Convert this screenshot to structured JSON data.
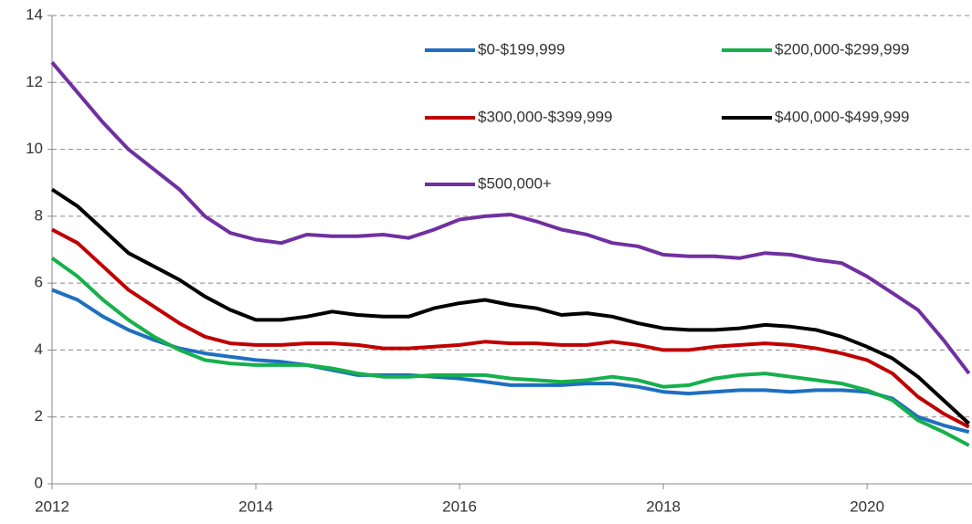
{
  "chart_data": {
    "type": "line",
    "x": [
      2012,
      2012.25,
      2012.5,
      2012.75,
      2013,
      2013.25,
      2013.5,
      2013.75,
      2014,
      2014.25,
      2014.5,
      2014.75,
      2015,
      2015.25,
      2015.5,
      2015.75,
      2016,
      2016.25,
      2016.5,
      2016.75,
      2017,
      2017.25,
      2017.5,
      2017.75,
      2018,
      2018.25,
      2018.5,
      2018.75,
      2019,
      2019.25,
      2019.5,
      2019.75,
      2020,
      2020.25,
      2020.5,
      2020.75,
      2021
    ],
    "series": [
      {
        "name": "$0-$199,999",
        "color": "#1f6fc0",
        "values": [
          5.8,
          5.5,
          5.0,
          4.6,
          4.3,
          4.05,
          3.9,
          3.8,
          3.7,
          3.65,
          3.55,
          3.4,
          3.25,
          3.25,
          3.25,
          3.2,
          3.15,
          3.05,
          2.95,
          2.95,
          2.95,
          3.0,
          3.0,
          2.9,
          2.75,
          2.7,
          2.75,
          2.8,
          2.8,
          2.75,
          2.8,
          2.8,
          2.75,
          2.55,
          2.0,
          1.75,
          1.55
        ]
      },
      {
        "name": "$200,000-$299,999",
        "color": "#16b04c",
        "values": [
          6.75,
          6.2,
          5.5,
          4.9,
          4.4,
          4.0,
          3.7,
          3.6,
          3.55,
          3.55,
          3.55,
          3.45,
          3.3,
          3.2,
          3.2,
          3.25,
          3.25,
          3.25,
          3.15,
          3.1,
          3.05,
          3.1,
          3.2,
          3.1,
          2.9,
          2.95,
          3.15,
          3.25,
          3.3,
          3.2,
          3.1,
          3.0,
          2.8,
          2.5,
          1.9,
          1.55,
          1.15
        ]
      },
      {
        "name": "$300,000-$399,999",
        "color": "#c00000",
        "values": [
          7.6,
          7.2,
          6.5,
          5.8,
          5.3,
          4.8,
          4.4,
          4.2,
          4.15,
          4.15,
          4.2,
          4.2,
          4.15,
          4.05,
          4.05,
          4.1,
          4.15,
          4.25,
          4.2,
          4.2,
          4.15,
          4.15,
          4.25,
          4.15,
          4.0,
          4.0,
          4.1,
          4.15,
          4.2,
          4.15,
          4.05,
          3.9,
          3.7,
          3.3,
          2.6,
          2.1,
          1.7
        ]
      },
      {
        "name": "$400,000-$499,999",
        "color": "#000000",
        "values": [
          8.8,
          8.3,
          7.6,
          6.9,
          6.5,
          6.1,
          5.6,
          5.2,
          4.9,
          4.9,
          5.0,
          5.15,
          5.05,
          5.0,
          5.0,
          5.25,
          5.4,
          5.5,
          5.35,
          5.25,
          5.05,
          5.1,
          5.0,
          4.8,
          4.65,
          4.6,
          4.6,
          4.65,
          4.75,
          4.7,
          4.6,
          4.4,
          4.1,
          3.75,
          3.2,
          2.5,
          1.8
        ]
      },
      {
        "name": "$500,000+",
        "color": "#7030a0",
        "values": [
          12.6,
          11.7,
          10.8,
          10.0,
          9.4,
          8.8,
          8.0,
          7.5,
          7.3,
          7.2,
          7.45,
          7.4,
          7.4,
          7.45,
          7.35,
          7.6,
          7.9,
          8.0,
          8.05,
          7.85,
          7.6,
          7.45,
          7.2,
          7.1,
          6.85,
          6.8,
          6.8,
          6.75,
          6.9,
          6.85,
          6.7,
          6.6,
          6.2,
          5.7,
          5.2,
          4.3,
          3.3
        ]
      }
    ],
    "xlim": [
      2012,
      2021.03
    ],
    "xticks": [
      2012,
      2014,
      2016,
      2018,
      2020
    ],
    "ylim": [
      0,
      14
    ],
    "yticks": [
      0,
      2,
      4,
      6,
      8,
      10,
      12,
      14
    ],
    "grid": true
  }
}
